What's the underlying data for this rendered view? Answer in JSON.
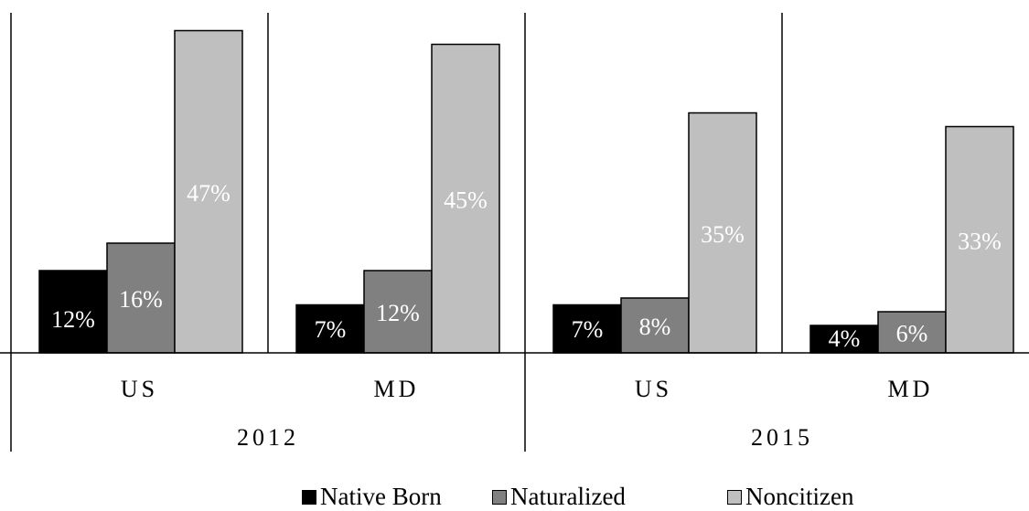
{
  "colors": {
    "Native Born": "#000000",
    "Naturalized": "#808080",
    "Noncitizen": "#bfbfbf",
    "label_dark": "#ffffff",
    "label_light": "#ffffff"
  },
  "chart_data": {
    "type": "bar",
    "title": "",
    "xlabel": "",
    "ylabel": "",
    "ylim": [
      0,
      50
    ],
    "grid": false,
    "legend_position": "bottom",
    "groups": [
      {
        "year": "2012",
        "categories": [
          "US",
          "MD"
        ]
      },
      {
        "year": "2015",
        "categories": [
          "US",
          "MD"
        ]
      }
    ],
    "categories": [
      "US",
      "MD",
      "US",
      "MD"
    ],
    "series": [
      {
        "name": "Native Born",
        "values": [
          12,
          7,
          7,
          4
        ],
        "labels": [
          "12%",
          "7%",
          "7%",
          "4%"
        ]
      },
      {
        "name": "Naturalized",
        "values": [
          16,
          12,
          8,
          6
        ],
        "labels": [
          "16%",
          "12%",
          "8%",
          "6%"
        ]
      },
      {
        "name": "Noncitizen",
        "values": [
          47,
          45,
          35,
          33
        ],
        "labels": [
          "47%",
          "45%",
          "35%",
          "33%"
        ]
      }
    ]
  },
  "legend": {
    "items": [
      {
        "label": "Native Born",
        "color": "#000000"
      },
      {
        "label": "Naturalized",
        "color": "#808080"
      },
      {
        "label": "Noncitizen",
        "color": "#bfbfbf"
      }
    ]
  }
}
